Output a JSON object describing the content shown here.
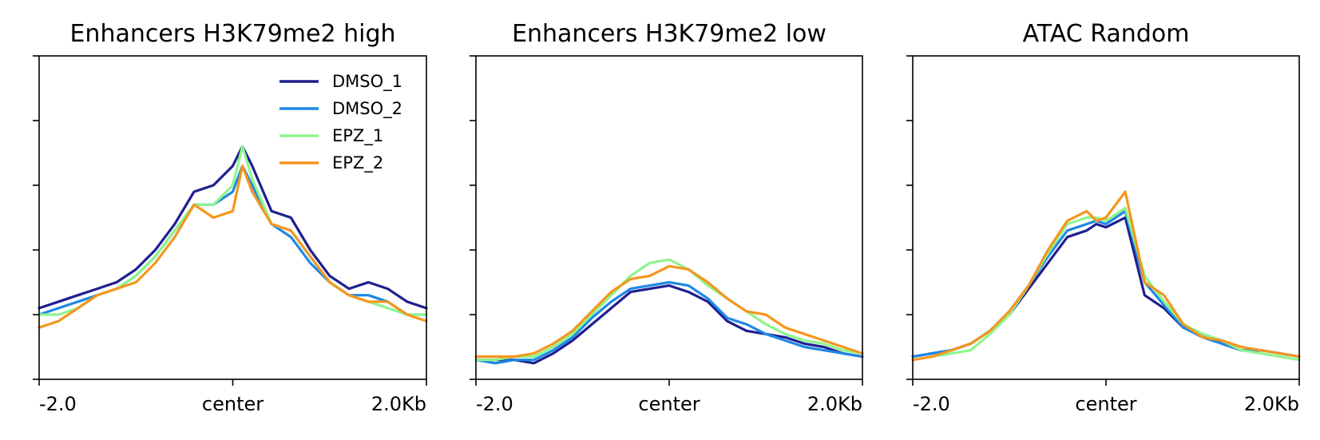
{
  "chart_data": [
    {
      "type": "line",
      "title": "Enhancers H3K79me2 high",
      "xlabel": "",
      "ylabel": "",
      "x_ticks": [
        "-2.0",
        "center",
        "2.0Kb"
      ],
      "xlim": [
        -2.0,
        2.0
      ],
      "ylim": [
        0,
        5
      ],
      "y_tick_count": 6,
      "y_tick_labels_shown": false,
      "grid": false,
      "legend": "top-right",
      "series": [
        {
          "name": "DMSO_1",
          "color": "#1f1f8f",
          "x": [
            -2.0,
            -1.8,
            -1.6,
            -1.4,
            -1.2,
            -1.0,
            -0.8,
            -0.6,
            -0.4,
            -0.2,
            0.0,
            0.1,
            0.2,
            0.4,
            0.6,
            0.8,
            1.0,
            1.2,
            1.4,
            1.6,
            1.8,
            2.0
          ],
          "y": [
            1.1,
            1.2,
            1.3,
            1.4,
            1.5,
            1.7,
            2.0,
            2.4,
            2.9,
            3.0,
            3.3,
            3.6,
            3.3,
            2.6,
            2.5,
            2.0,
            1.6,
            1.4,
            1.5,
            1.4,
            1.2,
            1.1
          ]
        },
        {
          "name": "DMSO_2",
          "color": "#1e88e5",
          "x": [
            -2.0,
            -1.8,
            -1.6,
            -1.4,
            -1.2,
            -1.0,
            -0.8,
            -0.6,
            -0.4,
            -0.2,
            0.0,
            0.1,
            0.2,
            0.4,
            0.6,
            0.8,
            1.0,
            1.2,
            1.4,
            1.6,
            1.8,
            2.0
          ],
          "y": [
            1.0,
            1.1,
            1.2,
            1.3,
            1.4,
            1.6,
            1.9,
            2.3,
            2.7,
            2.7,
            2.9,
            3.3,
            3.0,
            2.4,
            2.2,
            1.8,
            1.5,
            1.3,
            1.3,
            1.2,
            1.0,
            1.0
          ]
        },
        {
          "name": "EPZ_1",
          "color": "#8df58d",
          "x": [
            -2.0,
            -1.8,
            -1.6,
            -1.4,
            -1.2,
            -1.0,
            -0.8,
            -0.6,
            -0.4,
            -0.2,
            0.0,
            0.1,
            0.2,
            0.4,
            0.6,
            0.8,
            1.0,
            1.2,
            1.4,
            1.6,
            1.8,
            2.0
          ],
          "y": [
            1.0,
            1.0,
            1.1,
            1.3,
            1.4,
            1.6,
            1.9,
            2.3,
            2.7,
            2.7,
            3.0,
            3.6,
            3.1,
            2.4,
            2.3,
            1.9,
            1.5,
            1.3,
            1.2,
            1.1,
            1.0,
            1.0
          ]
        },
        {
          "name": "EPZ_2",
          "color": "#f5961e",
          "x": [
            -2.0,
            -1.8,
            -1.6,
            -1.4,
            -1.2,
            -1.0,
            -0.8,
            -0.6,
            -0.4,
            -0.2,
            0.0,
            0.1,
            0.2,
            0.4,
            0.6,
            0.8,
            1.0,
            1.2,
            1.4,
            1.6,
            1.8,
            2.0
          ],
          "y": [
            0.8,
            0.9,
            1.1,
            1.3,
            1.4,
            1.5,
            1.8,
            2.2,
            2.7,
            2.5,
            2.6,
            3.3,
            2.9,
            2.4,
            2.3,
            1.9,
            1.5,
            1.3,
            1.2,
            1.2,
            1.0,
            0.9
          ]
        }
      ]
    },
    {
      "type": "line",
      "title": "Enhancers H3K79me2 low",
      "xlabel": "",
      "ylabel": "",
      "x_ticks": [
        "-2.0",
        "center",
        "2.0Kb"
      ],
      "xlim": [
        -2.0,
        2.0
      ],
      "ylim": [
        0,
        5
      ],
      "y_tick_count": 6,
      "y_tick_labels_shown": false,
      "grid": false,
      "legend": "none",
      "series": [
        {
          "name": "DMSO_1",
          "color": "#1f1f8f",
          "x": [
            -2.0,
            -1.8,
            -1.6,
            -1.4,
            -1.2,
            -1.0,
            -0.8,
            -0.6,
            -0.4,
            -0.2,
            0.0,
            0.2,
            0.4,
            0.6,
            0.8,
            1.0,
            1.2,
            1.4,
            1.6,
            1.8,
            2.0
          ],
          "y": [
            0.3,
            0.3,
            0.3,
            0.25,
            0.4,
            0.6,
            0.85,
            1.1,
            1.35,
            1.4,
            1.45,
            1.35,
            1.2,
            0.9,
            0.75,
            0.7,
            0.65,
            0.55,
            0.5,
            0.4,
            0.35
          ]
        },
        {
          "name": "DMSO_2",
          "color": "#1e88e5",
          "x": [
            -2.0,
            -1.8,
            -1.6,
            -1.4,
            -1.2,
            -1.0,
            -0.8,
            -0.6,
            -0.4,
            -0.2,
            0.0,
            0.2,
            0.4,
            0.6,
            0.8,
            1.0,
            1.2,
            1.4,
            1.6,
            1.8,
            2.0
          ],
          "y": [
            0.3,
            0.25,
            0.3,
            0.3,
            0.45,
            0.65,
            0.95,
            1.2,
            1.4,
            1.45,
            1.5,
            1.45,
            1.25,
            0.95,
            0.85,
            0.7,
            0.6,
            0.5,
            0.45,
            0.4,
            0.35
          ]
        },
        {
          "name": "EPZ_1",
          "color": "#8df58d",
          "x": [
            -2.0,
            -1.8,
            -1.6,
            -1.4,
            -1.2,
            -1.0,
            -0.8,
            -0.6,
            -0.4,
            -0.2,
            0.0,
            0.2,
            0.4,
            0.6,
            0.8,
            1.0,
            1.2,
            1.4,
            1.6,
            1.8,
            2.0
          ],
          "y": [
            0.3,
            0.3,
            0.35,
            0.35,
            0.5,
            0.7,
            1.0,
            1.3,
            1.6,
            1.8,
            1.85,
            1.7,
            1.45,
            1.25,
            1.05,
            0.85,
            0.7,
            0.6,
            0.55,
            0.45,
            0.4
          ]
        },
        {
          "name": "EPZ_2",
          "color": "#f5961e",
          "x": [
            -2.0,
            -1.8,
            -1.6,
            -1.4,
            -1.2,
            -1.0,
            -0.8,
            -0.6,
            -0.4,
            -0.2,
            0.0,
            0.2,
            0.4,
            0.6,
            0.8,
            1.0,
            1.2,
            1.4,
            1.6,
            1.8,
            2.0
          ],
          "y": [
            0.35,
            0.35,
            0.35,
            0.4,
            0.55,
            0.75,
            1.05,
            1.35,
            1.55,
            1.6,
            1.75,
            1.7,
            1.5,
            1.25,
            1.05,
            1.0,
            0.8,
            0.7,
            0.6,
            0.5,
            0.4
          ]
        }
      ]
    },
    {
      "type": "line",
      "title": "ATAC Random",
      "xlabel": "",
      "ylabel": "",
      "x_ticks": [
        "-2.0",
        "center",
        "2.0Kb"
      ],
      "xlim": [
        -2.0,
        2.0
      ],
      "ylim": [
        0,
        5
      ],
      "y_tick_count": 6,
      "y_tick_labels_shown": false,
      "grid": false,
      "legend": "none",
      "series": [
        {
          "name": "DMSO_1",
          "color": "#1f1f8f",
          "x": [
            -2.0,
            -1.8,
            -1.6,
            -1.4,
            -1.2,
            -1.0,
            -0.8,
            -0.6,
            -0.4,
            -0.2,
            -0.1,
            0.0,
            0.2,
            0.4,
            0.6,
            0.8,
            1.0,
            1.2,
            1.4,
            1.6,
            1.8,
            2.0
          ],
          "y": [
            0.35,
            0.4,
            0.45,
            0.55,
            0.75,
            1.0,
            1.4,
            1.8,
            2.2,
            2.3,
            2.4,
            2.35,
            2.5,
            1.3,
            1.1,
            0.8,
            0.7,
            0.55,
            0.45,
            0.45,
            0.4,
            0.35
          ]
        },
        {
          "name": "DMSO_2",
          "color": "#1e88e5",
          "x": [
            -2.0,
            -1.8,
            -1.6,
            -1.4,
            -1.2,
            -1.0,
            -0.8,
            -0.6,
            -0.4,
            -0.2,
            -0.1,
            0.0,
            0.2,
            0.4,
            0.6,
            0.8,
            1.0,
            1.2,
            1.4,
            1.6,
            1.8,
            2.0
          ],
          "y": [
            0.35,
            0.4,
            0.45,
            0.55,
            0.75,
            1.05,
            1.45,
            1.9,
            2.3,
            2.4,
            2.45,
            2.4,
            2.6,
            1.5,
            1.15,
            0.8,
            0.65,
            0.55,
            0.45,
            0.45,
            0.4,
            0.35
          ]
        },
        {
          "name": "EPZ_1",
          "color": "#8df58d",
          "x": [
            -2.0,
            -1.8,
            -1.6,
            -1.4,
            -1.2,
            -1.0,
            -0.8,
            -0.6,
            -0.4,
            -0.2,
            -0.1,
            0.0,
            0.2,
            0.4,
            0.6,
            0.8,
            1.0,
            1.2,
            1.4,
            1.6,
            1.8,
            2.0
          ],
          "y": [
            0.3,
            0.35,
            0.4,
            0.45,
            0.7,
            1.0,
            1.45,
            1.95,
            2.4,
            2.5,
            2.5,
            2.45,
            2.65,
            1.6,
            1.2,
            0.85,
            0.7,
            0.6,
            0.45,
            0.4,
            0.35,
            0.3
          ]
        },
        {
          "name": "EPZ_2",
          "color": "#f5961e",
          "x": [
            -2.0,
            -1.8,
            -1.6,
            -1.4,
            -1.2,
            -1.0,
            -0.8,
            -0.6,
            -0.4,
            -0.2,
            -0.1,
            0.0,
            0.2,
            0.4,
            0.6,
            0.8,
            1.0,
            1.2,
            1.4,
            1.6,
            1.8,
            2.0
          ],
          "y": [
            0.3,
            0.35,
            0.45,
            0.55,
            0.75,
            1.05,
            1.45,
            2.0,
            2.45,
            2.6,
            2.45,
            2.5,
            2.9,
            1.5,
            1.3,
            0.85,
            0.65,
            0.6,
            0.5,
            0.45,
            0.4,
            0.35
          ]
        }
      ]
    }
  ]
}
